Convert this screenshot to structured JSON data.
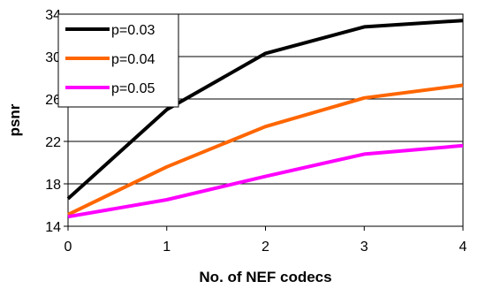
{
  "chart_data": {
    "type": "line",
    "title": "",
    "xlabel": "No. of NEF codecs",
    "ylabel": "psnr",
    "x": [
      0,
      1,
      2,
      3,
      4
    ],
    "xlim": [
      0,
      4
    ],
    "ylim": [
      14,
      34
    ],
    "yticks": [
      14,
      18,
      22,
      26,
      30,
      34
    ],
    "xticks": [
      0,
      1,
      2,
      3,
      4
    ],
    "grid": "horizontal",
    "legend_position": "top-left",
    "series": [
      {
        "name": "p=0.03",
        "color": "#000000",
        "values": [
          16.6,
          25.0,
          30.3,
          32.8,
          33.4
        ]
      },
      {
        "name": "p=0.04",
        "color": "#ff6600",
        "values": [
          15.1,
          19.6,
          23.4,
          26.1,
          27.3
        ]
      },
      {
        "name": "p=0.05",
        "color": "#ff00ff",
        "values": [
          14.9,
          16.5,
          18.7,
          20.8,
          21.6
        ]
      }
    ]
  }
}
